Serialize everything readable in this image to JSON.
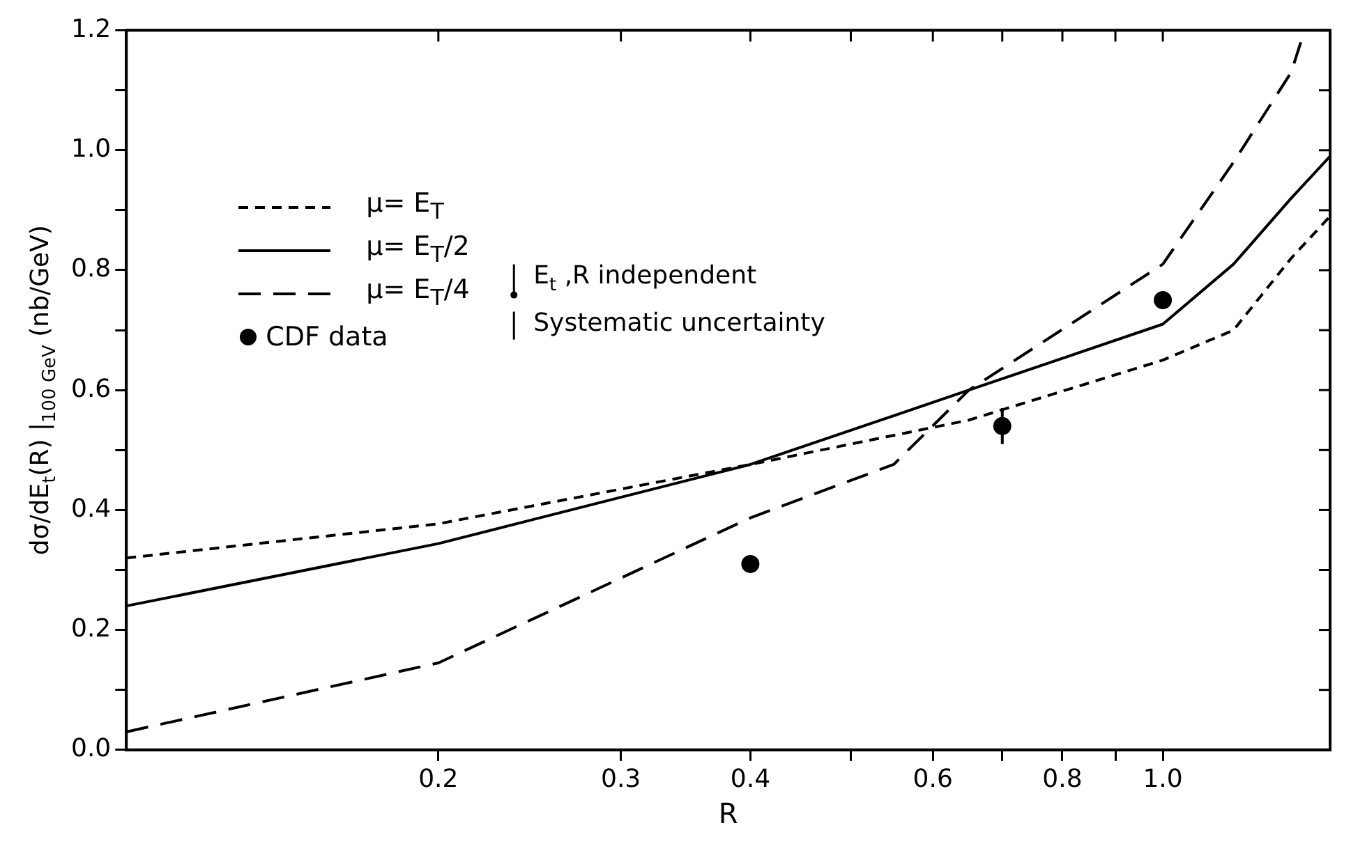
{
  "chart_data": {
    "type": "line",
    "xlabel": "R",
    "ylabel": "dσ/dE$_{t}$(R) |$_{100 GeV}$ (nb/GeV)",
    "log": "x",
    "xlim": [
      0.1,
      1.45
    ],
    "ylim": [
      0,
      1.2
    ],
    "xticks": [
      0.2,
      0.3,
      0.4,
      {
        "value": 0.5,
        "label": null
      },
      0.6,
      {
        "value": 0.7,
        "label": null
      },
      0.8,
      {
        "value": 0.9,
        "label": null
      },
      {
        "value": 1.0,
        "label": "1.0"
      }
    ],
    "yticks": [
      {
        "value": 0,
        "label": "0.0"
      },
      {
        "value": 0.1,
        "label": null
      },
      0.2,
      {
        "value": 0.3,
        "label": null
      },
      0.4,
      {
        "value": 0.5,
        "label": null
      },
      0.6,
      {
        "value": 0.7,
        "label": null
      },
      0.8,
      {
        "value": 0.9,
        "label": null
      },
      {
        "value": 1.0,
        "label": "1.0"
      },
      {
        "value": 1.1,
        "label": null
      },
      1.2
    ],
    "grid": false,
    "legend": "top left",
    "annotations": [
      "E$_{t}$ ,R independent",
      "Systematic uncertainty"
    ],
    "series": [
      {
        "name": "μ= E$_{T}$",
        "line_style": "dashed",
        "color": "#000000",
        "x": [
          0.1,
          0.2,
          0.4,
          0.65,
          1.0,
          1.17,
          1.33,
          1.45
        ],
        "values": [
          0.32,
          0.377,
          0.476,
          0.55,
          0.65,
          0.7,
          0.82,
          0.89
        ]
      },
      {
        "name": "μ= E$_{T}$/2",
        "line_style": "solid",
        "color": "#000000",
        "x": [
          0.1,
          0.2,
          0.4,
          0.65,
          1.0,
          1.17,
          1.33,
          1.45
        ],
        "values": [
          0.24,
          0.344,
          0.476,
          0.6,
          0.71,
          0.81,
          0.92,
          0.99
        ]
      },
      {
        "name": "μ= E$_{T}$/4",
        "line_style": "longdashed",
        "color": "#000000",
        "x": [
          0.1,
          0.2,
          0.4,
          0.55,
          0.65,
          1.0,
          1.17,
          1.33,
          1.37
        ],
        "values": [
          0.03,
          0.145,
          0.387,
          0.476,
          0.6,
          0.81,
          0.98,
          1.13,
          1.2
        ]
      },
      {
        "name": "CDF data",
        "type": "scatter",
        "marker": "circle",
        "color": "#000000",
        "x": [
          0.4,
          0.7,
          1.0
        ],
        "values": [
          0.31,
          0.54,
          0.75
        ],
        "errors": [
          null,
          0.03,
          null
        ]
      }
    ]
  }
}
